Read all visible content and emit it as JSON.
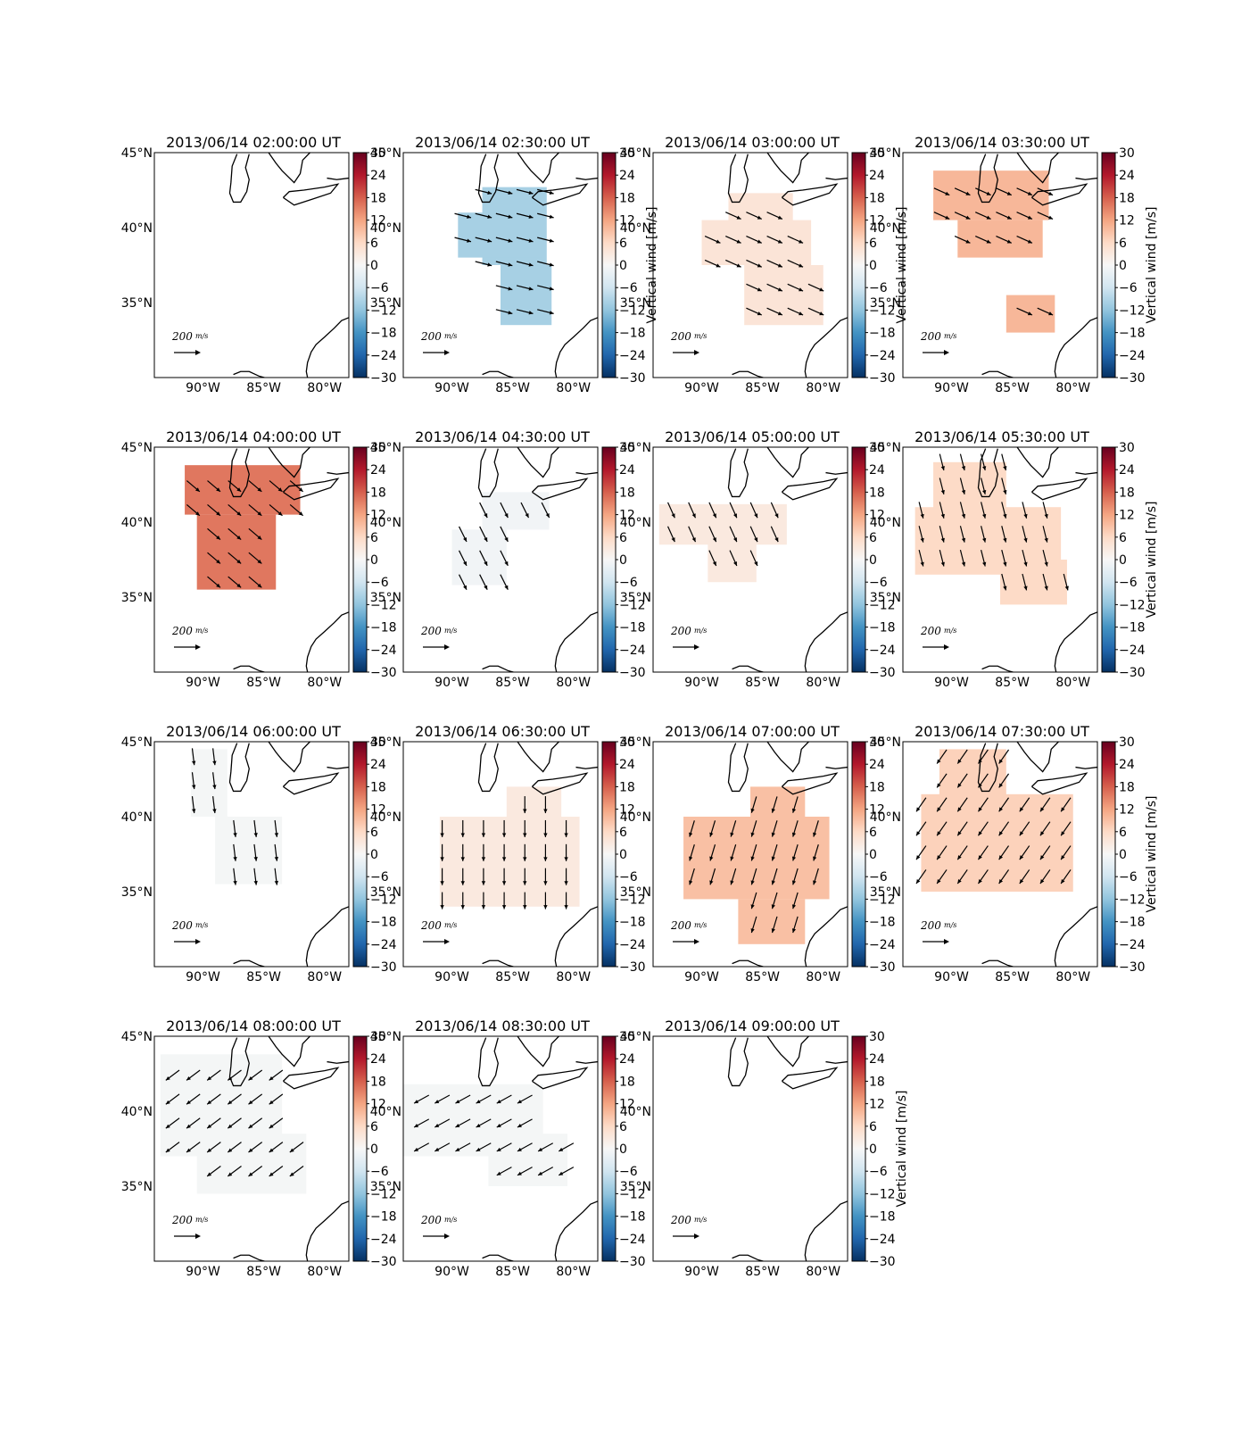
{
  "figure": {
    "panels": [
      {
        "title": "2013/06/14 02:00:00 UT",
        "has_field": false,
        "value": 0,
        "u": 0,
        "v": 0,
        "colorbar_label": ""
      },
      {
        "title": "2013/06/14 02:30:00 UT",
        "has_field": true,
        "value": -10,
        "u": 1.0,
        "v": -0.25,
        "colorbar_label": "Vertical wind [m/s]"
      },
      {
        "title": "2013/06/14 03:00:00 UT",
        "has_field": true,
        "value": 4,
        "u": 1.0,
        "v": -0.45,
        "colorbar_label": "Vertical wind [m/s]"
      },
      {
        "title": "2013/06/14 03:30:00 UT",
        "has_field": true,
        "value": 10,
        "u": 1.0,
        "v": -0.45,
        "colorbar_label": "Vertical wind [m/s]"
      },
      {
        "title": "2013/06/14 04:00:00 UT",
        "has_field": true,
        "value": 16,
        "u": 1.0,
        "v": -0.85,
        "colorbar_label": ""
      },
      {
        "title": "2013/06/14 04:30:00 UT",
        "has_field": true,
        "value": -1,
        "u": 0.5,
        "v": -1.0,
        "colorbar_label": ""
      },
      {
        "title": "2013/06/14 05:00:00 UT",
        "has_field": true,
        "value": 3,
        "u": 0.45,
        "v": -1.0,
        "colorbar_label": ""
      },
      {
        "title": "2013/06/14 05:30:00 UT",
        "has_field": true,
        "value": 6,
        "u": 0.25,
        "v": -1.0,
        "colorbar_label": "Vertical wind [m/s]"
      },
      {
        "title": "2013/06/14 06:00:00 UT",
        "has_field": true,
        "value": -0.5,
        "u": 0.12,
        "v": -1.0,
        "colorbar_label": ""
      },
      {
        "title": "2013/06/14 06:30:00 UT",
        "has_field": true,
        "value": 3,
        "u": 0.0,
        "v": -1.0,
        "colorbar_label": ""
      },
      {
        "title": "2013/06/14 07:00:00 UT",
        "has_field": true,
        "value": 9,
        "u": -0.3,
        "v": -1.0,
        "colorbar_label": ""
      },
      {
        "title": "2013/06/14 07:30:00 UT",
        "has_field": true,
        "value": 7,
        "u": -0.7,
        "v": -1.0,
        "colorbar_label": "Vertical wind [m/s]"
      },
      {
        "title": "2013/06/14 08:00:00 UT",
        "has_field": true,
        "value": -0.5,
        "u": -1.0,
        "v": -0.75,
        "colorbar_label": ""
      },
      {
        "title": "2013/06/14 08:30:00 UT",
        "has_field": true,
        "value": -0.5,
        "u": -1.0,
        "v": -0.55,
        "colorbar_label": ""
      },
      {
        "title": "2013/06/14 09:00:00 UT",
        "has_field": false,
        "value": 0,
        "u": 0,
        "v": 0,
        "colorbar_label": "Vertical wind [m/s]"
      }
    ],
    "colorbar_ticks": [
      "30",
      "24",
      "18",
      "12",
      "6",
      "0",
      "−6",
      "−12",
      "−18",
      "−24",
      "−30"
    ],
    "lat_ticks": [
      "45°N",
      "40°N",
      "35°N"
    ],
    "lon_ticks": [
      "90°W",
      "85°W",
      "80°W"
    ],
    "scale_value": "200",
    "scale_unit": "m/s"
  },
  "chart_data": {
    "type": "heatmap",
    "description_fields": "vertical wind (color) with horizontal wind vectors (arrows)",
    "colorbar": {
      "label": "Vertical wind [m/s]",
      "range": [
        -30,
        30
      ],
      "colormap": "RdBu_r"
    },
    "x_axis": {
      "ticks": [
        "90°W",
        "85°W",
        "80°W"
      ],
      "range_deg": [
        -94,
        -78
      ]
    },
    "y_axis": {
      "ticks": [
        "45°N",
        "40°N",
        "35°N"
      ],
      "range_deg": [
        30,
        45
      ]
    },
    "reference_vector": {
      "value": 200,
      "unit": "m/s"
    }
  }
}
